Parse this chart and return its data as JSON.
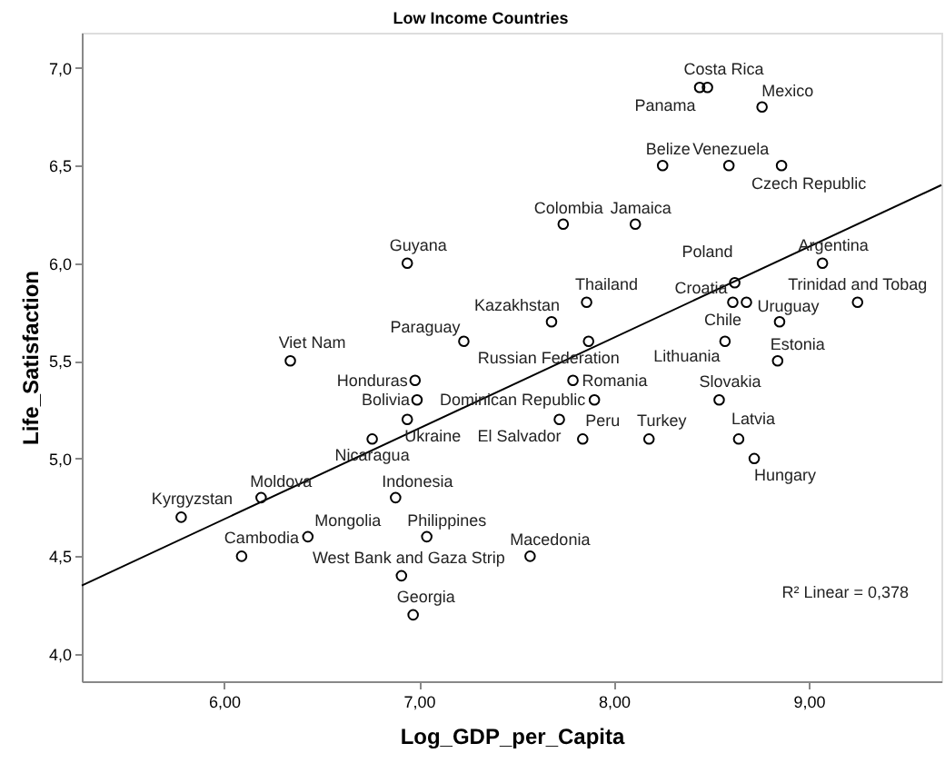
{
  "chart_data": {
    "type": "scatter",
    "title": "Low Income Countries",
    "xlabel": "Log_GDP_per_Capita",
    "ylabel": "Life_Satisfaction",
    "xlim": [
      5.27,
      9.68
    ],
    "ylim": [
      3.86,
      7.18
    ],
    "xticks": [
      {
        "value": 6,
        "label": "6,00"
      },
      {
        "value": 7,
        "label": "7,00"
      },
      {
        "value": 8,
        "label": "8,00"
      },
      {
        "value": 9,
        "label": "9,00"
      }
    ],
    "yticks": [
      {
        "value": 4,
        "label": "4,0"
      },
      {
        "value": 4.5,
        "label": "4,5"
      },
      {
        "value": 5,
        "label": "5,0"
      },
      {
        "value": 5.5,
        "label": "5,5"
      },
      {
        "value": 6,
        "label": "6,0"
      },
      {
        "value": 6.5,
        "label": "6,5"
      },
      {
        "value": 7,
        "label": "7,0"
      }
    ],
    "marker": "circle",
    "series": [
      {
        "type": "scatter",
        "color": "#000000",
        "x": [
          8.48,
          8.44,
          8.76,
          8.25,
          8.59,
          8.86,
          7.74,
          8.11,
          6.94,
          8.62,
          9.07,
          7.86,
          8.61,
          9.25,
          7.68,
          8.68,
          8.85,
          7.23,
          6.34,
          8.84,
          7.87,
          8.57,
          6.98,
          7.79,
          8.54,
          6.99,
          7.9,
          6.94,
          7.72,
          7.84,
          8.18,
          8.64,
          6.76,
          8.72,
          6.19,
          6.88,
          5.78,
          6.43,
          7.04,
          6.09,
          6.91,
          7.57,
          6.97
        ],
        "values": [
          6.9,
          6.9,
          6.8,
          6.5,
          6.5,
          6.5,
          6.2,
          6.2,
          6.0,
          5.9,
          6.0,
          5.8,
          5.8,
          5.8,
          5.7,
          5.8,
          5.7,
          5.6,
          5.5,
          5.5,
          5.6,
          5.6,
          5.4,
          5.4,
          5.3,
          5.3,
          5.3,
          5.2,
          5.2,
          5.1,
          5.1,
          5.1,
          5.1,
          5.0,
          4.8,
          4.8,
          4.7,
          4.6,
          4.6,
          4.5,
          4.4,
          4.5,
          4.2
        ]
      },
      {
        "type": "line",
        "color": "#000000",
        "marker": "none",
        "x": [
          5.27,
          9.68
        ],
        "values": [
          4.35,
          6.4
        ]
      }
    ],
    "annotations": [
      {
        "text": "Costa Rica",
        "x": 8.48,
        "y": 6.9
      },
      {
        "text": "Panama",
        "x": 8.44,
        "y": 6.9
      },
      {
        "text": "Mexico",
        "x": 8.76,
        "y": 6.8
      },
      {
        "text": "Belize",
        "x": 8.25,
        "y": 6.5
      },
      {
        "text": "Venezuela",
        "x": 8.59,
        "y": 6.5
      },
      {
        "text": "Czech Republic",
        "x": 8.86,
        "y": 6.5
      },
      {
        "text": "Colombia",
        "x": 7.74,
        "y": 6.2
      },
      {
        "text": "Jamaica",
        "x": 8.11,
        "y": 6.2
      },
      {
        "text": "Guyana",
        "x": 6.94,
        "y": 6.0
      },
      {
        "text": "Poland",
        "x": 8.62,
        "y": 5.9
      },
      {
        "text": "Argentina",
        "x": 9.07,
        "y": 6.0
      },
      {
        "text": "Thailand",
        "x": 7.86,
        "y": 5.8
      },
      {
        "text": "Croatia",
        "x": 8.61,
        "y": 5.8
      },
      {
        "text": "Trinidad and Tobag",
        "x": 9.25,
        "y": 5.8
      },
      {
        "text": "Kazakhstan",
        "x": 7.68,
        "y": 5.7
      },
      {
        "text": "Uruguay",
        "x": 8.68,
        "y": 5.8
      },
      {
        "text": "Chile",
        "x": 8.85,
        "y": 5.7
      },
      {
        "text": "Paraguay",
        "x": 7.23,
        "y": 5.6
      },
      {
        "text": "Viet Nam",
        "x": 6.34,
        "y": 5.5
      },
      {
        "text": "Estonia",
        "x": 8.84,
        "y": 5.5
      },
      {
        "text": "Russian Federation",
        "x": 7.87,
        "y": 5.6
      },
      {
        "text": "Lithuania",
        "x": 8.57,
        "y": 5.6
      },
      {
        "text": "Honduras",
        "x": 6.98,
        "y": 5.4
      },
      {
        "text": "Romania",
        "x": 7.79,
        "y": 5.4
      },
      {
        "text": "Slovakia",
        "x": 8.54,
        "y": 5.3
      },
      {
        "text": "Bolivia",
        "x": 6.99,
        "y": 5.3
      },
      {
        "text": "Dominican Republic",
        "x": 7.9,
        "y": 5.3
      },
      {
        "text": "Ukraine",
        "x": 6.94,
        "y": 5.2
      },
      {
        "text": "El Salvador",
        "x": 7.72,
        "y": 5.2
      },
      {
        "text": "Peru",
        "x": 7.84,
        "y": 5.1
      },
      {
        "text": "Turkey",
        "x": 8.18,
        "y": 5.1
      },
      {
        "text": "Latvia",
        "x": 8.64,
        "y": 5.1
      },
      {
        "text": "Nicaragua",
        "x": 6.76,
        "y": 5.1
      },
      {
        "text": "Hungary",
        "x": 8.72,
        "y": 5.0
      },
      {
        "text": "Moldova",
        "x": 6.19,
        "y": 4.8
      },
      {
        "text": "Indonesia",
        "x": 6.88,
        "y": 4.8
      },
      {
        "text": "Kyrgyzstan",
        "x": 5.78,
        "y": 4.7
      },
      {
        "text": "Mongolia",
        "x": 6.43,
        "y": 4.6
      },
      {
        "text": "Philippines",
        "x": 7.04,
        "y": 4.6
      },
      {
        "text": "Cambodia",
        "x": 6.09,
        "y": 4.5
      },
      {
        "text": "West Bank and Gaza Strip",
        "x": 6.91,
        "y": 4.4
      },
      {
        "text": "Macedonia",
        "x": 7.57,
        "y": 4.5
      },
      {
        "text": "Georgia",
        "x": 6.97,
        "y": 4.2
      },
      "R² Linear = 0,378"
    ]
  }
}
